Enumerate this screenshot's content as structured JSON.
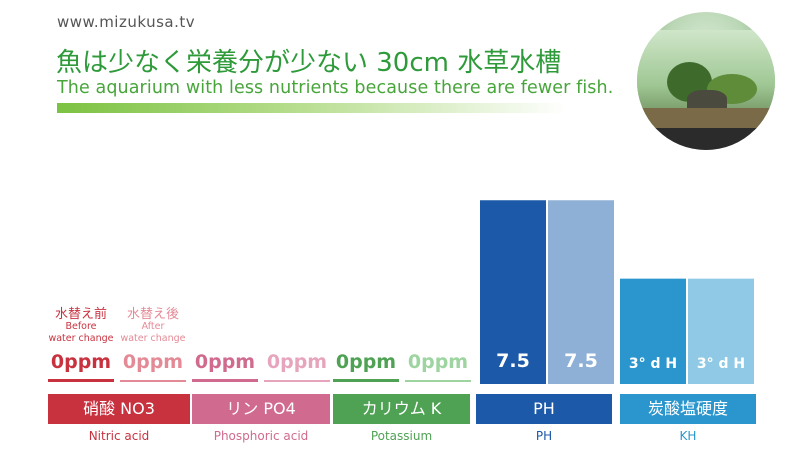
{
  "header": {
    "site_url": "www.mizukusa.tv",
    "title_jp": "魚は少なく栄養分が少ない 30cm 水草水槽",
    "title_en": "The aquarium with less nutrients because there are fewer fish."
  },
  "legend": {
    "before_jp": "水替え前",
    "before_en": "Before\nwater change",
    "after_jp": "水替え後",
    "after_en": "After\nwater change"
  },
  "colors": {
    "nitrate": "#c8323f",
    "nitrate_light": "#e48a96",
    "phosphate": "#d06a8e",
    "phosphate_light": "#e7a5bd",
    "potassium": "#4fa254",
    "potassium_light": "#9dd4a0",
    "ph_before": "#1c59a8",
    "ph_after": "#8eb0d6",
    "kh_before": "#2a96cd",
    "kh_after": "#8fc9e6",
    "title_green": "#2e9a3a"
  },
  "thumbnail": {
    "icon": "aquarium-photo"
  },
  "chart_data": {
    "type": "bar",
    "categories": [
      {
        "label_jp": "硝酸 NO3",
        "label_en": "Nitric acid"
      },
      {
        "label_jp": "リン PO4",
        "label_en": "Phosphoric acid"
      },
      {
        "label_jp": "カリウム K",
        "label_en": "Potassium"
      },
      {
        "label_jp": "PH",
        "label_en": "PH"
      },
      {
        "label_jp": "炭酸塩硬度",
        "label_en": "KH"
      }
    ],
    "series": [
      {
        "name": "水替え前 Before water change",
        "values": [
          0,
          0,
          0,
          7.5,
          3
        ],
        "labels": [
          "0ppm",
          "0ppm",
          "0ppm",
          "7.5",
          "3° d H"
        ]
      },
      {
        "name": "水替え後 After water change",
        "values": [
          0,
          0,
          0,
          7.5,
          3
        ],
        "labels": [
          "0ppm",
          "0ppm",
          "0ppm",
          "7.5",
          "3° d H"
        ]
      }
    ],
    "bar_levels": {
      "ph": 0.75,
      "kh": 0.43
    },
    "grid": false,
    "legend_position": "top-left"
  }
}
